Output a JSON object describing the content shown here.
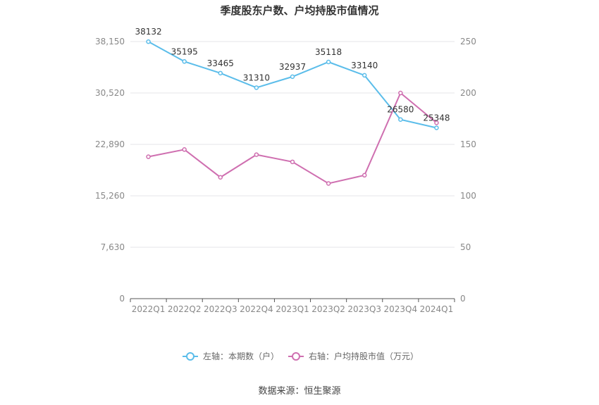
{
  "chart_data": {
    "type": "line",
    "title": "季度股东户数、户均持股市值情况",
    "categories": [
      "2022Q1",
      "2022Q2",
      "2022Q3",
      "2022Q4",
      "2023Q1",
      "2023Q2",
      "2023Q3",
      "2023Q4",
      "2024Q1"
    ],
    "left_axis": {
      "ylim": [
        0,
        38150
      ],
      "ticks": [
        0,
        7630,
        15260,
        22890,
        30520,
        38150
      ],
      "tick_labels": [
        "0",
        "7,630",
        "15,260",
        "22,890",
        "30,520",
        "38,150"
      ]
    },
    "right_axis": {
      "ylim": [
        0,
        250
      ],
      "ticks": [
        0,
        50,
        100,
        150,
        200,
        250
      ],
      "tick_labels": [
        "0",
        "50",
        "100",
        "150",
        "200",
        "250"
      ]
    },
    "series": [
      {
        "name": "左轴：本期数（户）",
        "axis": "left",
        "color": "#5bbdea",
        "values": [
          38132,
          35195,
          33465,
          31310,
          32937,
          35118,
          33140,
          26580,
          25348
        ],
        "labels": [
          "38132",
          "35195",
          "33465",
          "31310",
          "32937",
          "35118",
          "33140",
          "26580",
          "25348"
        ]
      },
      {
        "name": "右轴：户均持股市值（万元）",
        "axis": "right",
        "color": "#cf6fb0",
        "values": [
          138,
          145,
          118,
          140,
          133,
          112,
          120,
          200,
          171
        ]
      }
    ],
    "grid": true,
    "legend_position": "bottom-center"
  },
  "footer": {
    "source": "数据来源：恒生聚源"
  }
}
